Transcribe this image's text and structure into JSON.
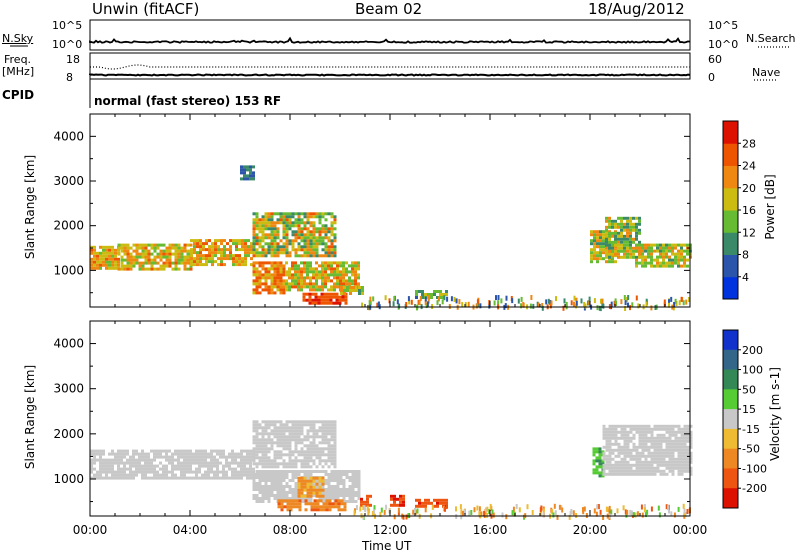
{
  "header": {
    "station": "Unwin (fitACF)",
    "beam": "Beam 02",
    "date": "18/Aug/2012"
  },
  "summary_panel": {
    "nsky_label": "N.Sky",
    "nsky_tick_top": "10^5",
    "nsky_tick_bottom": "10^0",
    "nsearch_label": "N.Search",
    "nsearch_tick_top": "10^5",
    "nsearch_tick_bottom": "10^0",
    "freq_label": "Freq.",
    "freq_unit": "[MHz]",
    "freq_tick_top": "18",
    "freq_tick_bottom": "8",
    "nave_label": "Nave",
    "nave_tick_top": "60",
    "nave_tick_bottom": "0",
    "cpid_label": "CPID",
    "cpid_text": "normal (fast stereo) 153 RF"
  },
  "axes": {
    "ylabel": "Slant Range [km]",
    "xlabel": "Time UT",
    "xticks": [
      "00:00",
      "04:00",
      "08:00",
      "12:00",
      "16:00",
      "20:00",
      "00:00"
    ],
    "yticks": [
      "1000",
      "2000",
      "3000",
      "4000"
    ]
  },
  "power_colorbar": {
    "label": "Power [dB]",
    "ticks": [
      "4",
      "8",
      "12",
      "16",
      "20",
      "24",
      "28"
    ],
    "colors": [
      "#0033dd",
      "#2a55aa",
      "#3a8a6a",
      "#66bb33",
      "#ccbb11",
      "#ee8811",
      "#ee5500",
      "#dd1100"
    ]
  },
  "velocity_colorbar": {
    "label": "Velocity [m s-1]",
    "ticks": [
      "200",
      "100",
      "50",
      "15",
      "-15",
      "-50",
      "-100",
      "-200"
    ],
    "colors": [
      "#1133cc",
      "#336688",
      "#338855",
      "#55cc33",
      "#c8c8c8",
      "#eebb33",
      "#ee8822",
      "#ee5511",
      "#dd1100"
    ]
  },
  "chart_data": [
    {
      "type": "heatmap",
      "name": "power",
      "x_range_hours": [
        0,
        24
      ],
      "ylim": [
        180,
        4500
      ],
      "regions": [
        {
          "t0": 0.0,
          "t1": 1.1,
          "r0": 1050,
          "r1": 1550,
          "value": 20,
          "spread": 5
        },
        {
          "t0": 1.1,
          "t1": 4.0,
          "r0": 1050,
          "r1": 1600,
          "value": 19,
          "spread": 6
        },
        {
          "t0": 4.0,
          "t1": 6.5,
          "r0": 1100,
          "r1": 1700,
          "value": 20,
          "spread": 6
        },
        {
          "t0": 6.5,
          "t1": 9.8,
          "r0": 1300,
          "r1": 2300,
          "value": 17,
          "spread": 8
        },
        {
          "t0": 6.5,
          "t1": 7.8,
          "r0": 500,
          "r1": 1200,
          "value": 23,
          "spread": 5
        },
        {
          "t0": 7.8,
          "t1": 10.8,
          "r0": 550,
          "r1": 1200,
          "value": 19,
          "spread": 7
        },
        {
          "t0": 8.5,
          "t1": 10.2,
          "r0": 280,
          "r1": 500,
          "value": 27,
          "spread": 3
        },
        {
          "t0": 10.0,
          "t1": 10.9,
          "r0": 450,
          "r1": 650,
          "value": 16,
          "spread": 6
        },
        {
          "t0": 13.0,
          "t1": 14.3,
          "r0": 380,
          "r1": 560,
          "value": 12,
          "spread": 6
        },
        {
          "t0": 6.0,
          "t1": 6.6,
          "r0": 3050,
          "r1": 3350,
          "value": 8,
          "spread": 4
        },
        {
          "t0": 20.0,
          "t1": 21.0,
          "r0": 1200,
          "r1": 1900,
          "value": 17,
          "spread": 6
        },
        {
          "t0": 20.6,
          "t1": 22.0,
          "r0": 1300,
          "r1": 2200,
          "value": 16,
          "spread": 7
        },
        {
          "t0": 21.8,
          "t1": 24.0,
          "r0": 1100,
          "r1": 1600,
          "value": 17,
          "spread": 6
        }
      ]
    },
    {
      "type": "heatmap",
      "name": "velocity",
      "x_range_hours": [
        0,
        24
      ],
      "ylim": [
        180,
        4500
      ],
      "regions": [
        {
          "t0": 0.0,
          "t1": 6.5,
          "r0": 1050,
          "r1": 1650,
          "value": 0,
          "spread": 10
        },
        {
          "t0": 6.5,
          "t1": 9.8,
          "r0": 1250,
          "r1": 2300,
          "value": 0,
          "spread": 12
        },
        {
          "t0": 6.5,
          "t1": 10.8,
          "r0": 500,
          "r1": 1200,
          "value": 0,
          "spread": 12
        },
        {
          "t0": 8.3,
          "t1": 9.3,
          "r0": 600,
          "r1": 1050,
          "value": -60,
          "spread": 30
        },
        {
          "t0": 7.5,
          "t1": 10.2,
          "r0": 350,
          "r1": 550,
          "value": -80,
          "spread": 30
        },
        {
          "t0": 10.8,
          "t1": 11.2,
          "r0": 450,
          "r1": 650,
          "value": -180,
          "spread": 30
        },
        {
          "t0": 12.0,
          "t1": 12.6,
          "r0": 400,
          "r1": 650,
          "value": -200,
          "spread": 20
        },
        {
          "t0": 13.0,
          "t1": 14.3,
          "r0": 380,
          "r1": 560,
          "value": -170,
          "spread": 40
        },
        {
          "t0": 20.1,
          "t1": 20.5,
          "r0": 1100,
          "r1": 1700,
          "value": 40,
          "spread": 20
        },
        {
          "t0": 20.5,
          "t1": 24.0,
          "r0": 1100,
          "r1": 2200,
          "value": 0,
          "spread": 12
        }
      ]
    }
  ]
}
